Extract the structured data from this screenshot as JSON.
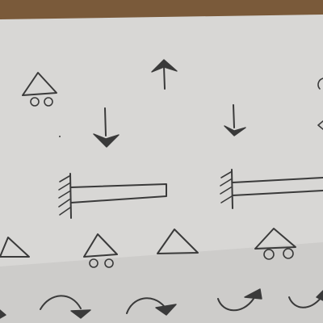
{
  "scene": {
    "description_free": true,
    "colors": {
      "table": "#7a5a3a",
      "paper": "#d8d7d5",
      "paper_shadow": "#b9b8b6",
      "ink": "#3a3a3a"
    }
  },
  "symbols": {
    "pin_supports_with_rollers": 4,
    "pin_supports_plain": 2,
    "downward_force_arrows": 2,
    "upward_force_arrows": 1,
    "fixed_wall_beams": 2,
    "curved_moment_arrows": 5
  }
}
